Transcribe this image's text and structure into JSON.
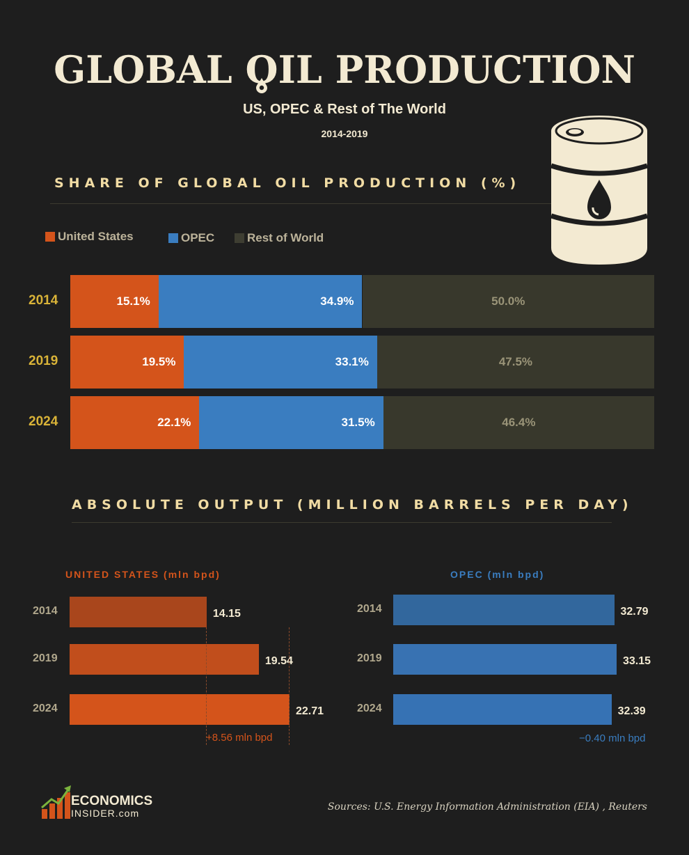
{
  "header": {
    "title_before": "GLOBAL ",
    "title_o": "O",
    "title_after": "IL PRODUCTION",
    "subtitle": "US, OPEC & Rest of The World",
    "years": "2014-2019"
  },
  "colors": {
    "us": "#d4541b",
    "opec": "#3a7dc0",
    "row": "#38382c",
    "us_dark": "#a9461c",
    "opec_dark": "#32679d"
  },
  "share_section": {
    "title": "SHARE OF GLOBAL OIL PRODUCTION (%)",
    "legend": [
      "United States",
      "OPEC",
      "Rest of World"
    ]
  },
  "output_section": {
    "title": "ABSOLUTE OUTPUT (MILLION BARRELS PER DAY)",
    "us_heading": "UNITED STATES (mln bpd)",
    "opec_heading": "OPEC (mln bpd)",
    "us_change": "+8.56 mln bpd",
    "opec_change": "−0.40 mln bpd"
  },
  "icons": {
    "barrel": "oil-barrel-icon",
    "drop": "oil-drop-icon",
    "logo": "growth-bars-arrow-icon"
  },
  "footer": {
    "logo_line1": "ECONOMICS",
    "logo_line2": "INSIDER.com",
    "sources": "Sources: U.S. Energy Information Administration (EIA) , Reuters"
  },
  "chart_data": [
    {
      "type": "bar",
      "stacked": true,
      "orientation": "horizontal",
      "title": "SHARE OF GLOBAL OIL PRODUCTION (%)",
      "categories": [
        "2014",
        "2019",
        "2024"
      ],
      "series": [
        {
          "name": "United States",
          "values": [
            15.1,
            19.5,
            22.1
          ],
          "labels": [
            "15.1%",
            "19.5%",
            "22.1%"
          ]
        },
        {
          "name": "OPEC",
          "values": [
            34.9,
            33.1,
            31.5
          ],
          "labels": [
            "34.9%",
            "33.1%",
            "31.5%"
          ]
        },
        {
          "name": "Rest of World",
          "values": [
            50.0,
            47.5,
            46.4
          ],
          "labels": [
            "50.0%",
            "47.5%",
            "46.4%"
          ]
        }
      ],
      "xlim": [
        0,
        100
      ],
      "legend": "top-left",
      "grid": false
    },
    {
      "type": "bar",
      "orientation": "horizontal",
      "title": "UNITED STATES (mln bpd)",
      "categories": [
        "2014",
        "2019",
        "2024"
      ],
      "values": [
        14.15,
        19.54,
        22.71
      ],
      "labels": [
        "14.15",
        "19.54",
        "22.71"
      ],
      "xlim": [
        0,
        22.71
      ],
      "annotation": "+8.56 mln bpd"
    },
    {
      "type": "bar",
      "orientation": "horizontal",
      "title": "OPEC (mln bpd)",
      "categories": [
        "2014",
        "2019",
        "2024"
      ],
      "values": [
        32.79,
        33.15,
        32.39
      ],
      "labels": [
        "32.79",
        "33.15",
        "32.39"
      ],
      "xlim": [
        0,
        33.15
      ],
      "annotation": "−0.40 mln bpd"
    }
  ]
}
